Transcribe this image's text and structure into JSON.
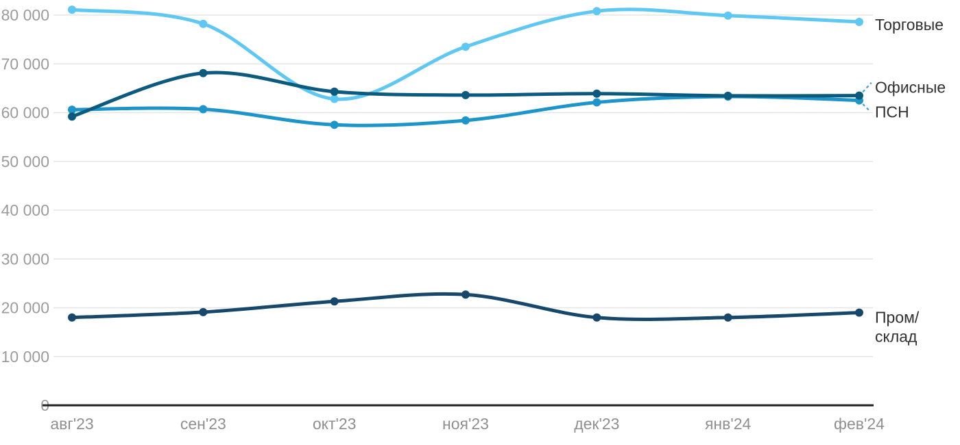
{
  "chart_data": {
    "type": "line",
    "title": "",
    "xlabel": "",
    "ylabel": "",
    "grid": true,
    "legend_position": "right-inline-labels",
    "x_categories": [
      "авг'23",
      "сен'23",
      "окт'23",
      "ноя'23",
      "дек'23",
      "янв'24",
      "фев'24"
    ],
    "y_axis": {
      "min": 0,
      "max": 80000,
      "step": 10000,
      "tick_labels": [
        "0",
        "10 000",
        "20 000",
        "30 000",
        "40 000",
        "50 000",
        "60 000",
        "70 000",
        "80 000"
      ]
    },
    "series": [
      {
        "name": "Торговые",
        "color": "#5EC8F2",
        "values": [
          81100,
          78200,
          62800,
          73500,
          80800,
          79900,
          78600
        ],
        "label_lines": [
          "Торговые"
        ],
        "connector": "none"
      },
      {
        "name": "ПСН",
        "color": "#1E95C8",
        "values": [
          60600,
          60700,
          57500,
          58400,
          62100,
          63300,
          62500
        ],
        "label_lines": [
          "ПСН"
        ],
        "connector": "down"
      },
      {
        "name": "Офисные",
        "color": "#0C5B7E",
        "values": [
          59200,
          68100,
          64300,
          63600,
          63900,
          63450,
          63500
        ],
        "label_lines": [
          "Офисные"
        ],
        "connector": "up"
      },
      {
        "name": "Пром/склад",
        "color": "#17486C",
        "values": [
          18000,
          19100,
          21300,
          22700,
          18000,
          18000,
          19000
        ],
        "label_lines": [
          "Пром/",
          "склад"
        ],
        "connector": "none"
      }
    ]
  },
  "colors": {
    "background": "#FFFFFF",
    "gridline": "#E5E5E5",
    "axis_line": "#212121",
    "y_tick_text": "#9B9B9B",
    "x_tick_text": "#8F8F8F",
    "series_label_text": "#303030",
    "connector": "#4FA8D8"
  }
}
